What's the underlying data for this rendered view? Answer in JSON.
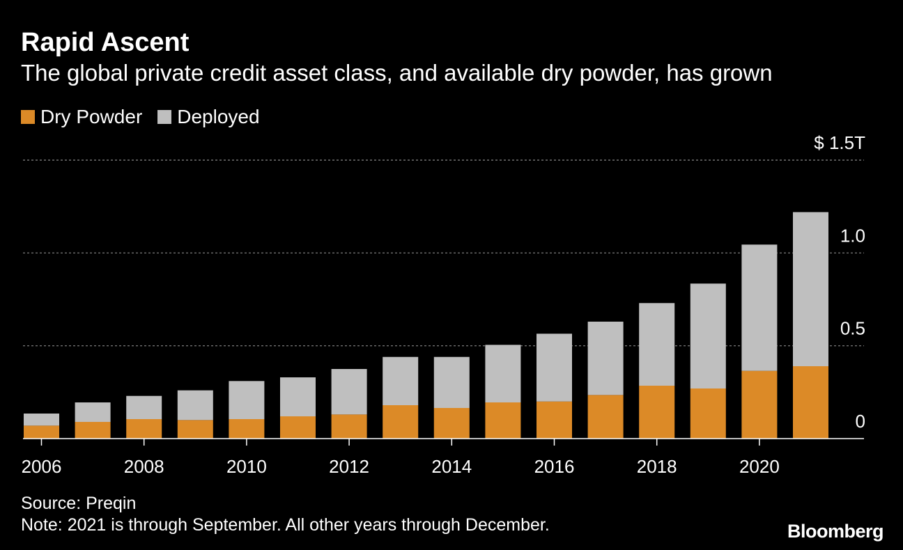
{
  "header": {
    "title": "Rapid Ascent",
    "subtitle": "The global private credit asset class, and available dry powder, has grown"
  },
  "legend": {
    "items": [
      {
        "label": "Dry Powder",
        "color": "#dc8a27"
      },
      {
        "label": "Deployed",
        "color": "#bfbfbf"
      }
    ]
  },
  "footer": {
    "source": "Source: Preqin",
    "note": "Note: 2021 is through September. All other years through December.",
    "brand": "Bloomberg"
  },
  "chart_data": {
    "type": "bar",
    "stacked": true,
    "title": "Rapid Ascent",
    "categories": [
      "2006",
      "2007",
      "2008",
      "2009",
      "2010",
      "2011",
      "2012",
      "2013",
      "2014",
      "2015",
      "2016",
      "2017",
      "2018",
      "2019",
      "2020",
      "2021"
    ],
    "x_tick_labels": [
      "2006",
      "2008",
      "2010",
      "2012",
      "2014",
      "2016",
      "2018",
      "2020"
    ],
    "series": [
      {
        "name": "Dry Powder",
        "color": "#dc8a27",
        "values": [
          0.07,
          0.09,
          0.105,
          0.1,
          0.105,
          0.12,
          0.13,
          0.18,
          0.165,
          0.195,
          0.2,
          0.235,
          0.285,
          0.27,
          0.365,
          0.39
        ]
      },
      {
        "name": "Deployed",
        "color": "#bfbfbf",
        "values": [
          0.065,
          0.105,
          0.125,
          0.16,
          0.205,
          0.21,
          0.245,
          0.26,
          0.275,
          0.31,
          0.365,
          0.395,
          0.445,
          0.565,
          0.68,
          0.83
        ]
      }
    ],
    "y_ticks": [
      {
        "value": 0,
        "label": "0"
      },
      {
        "value": 0.5,
        "label": "0.5"
      },
      {
        "value": 1.0,
        "label": "1.0"
      },
      {
        "value": 1.5,
        "label": "$ 1.5T"
      }
    ],
    "ylim": [
      0,
      1.5
    ],
    "xlabel": "",
    "ylabel": "",
    "grid": true
  }
}
